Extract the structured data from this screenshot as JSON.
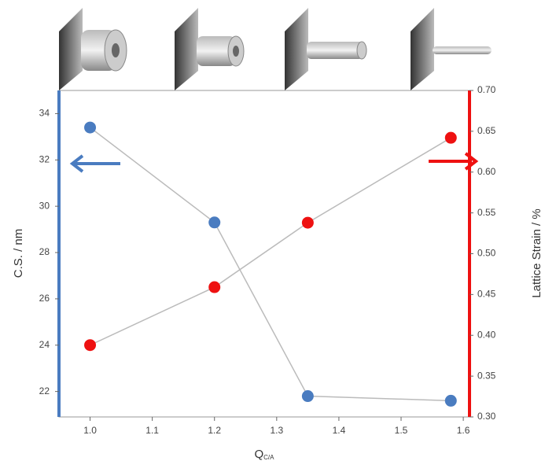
{
  "chart_data": {
    "type": "line",
    "xlabel": "Q",
    "xlabel_subscript": "C/A",
    "ylabel": "C.S. / nm",
    "y2label": "Lattice Strain / %",
    "x": [
      1.0,
      1.2,
      1.35,
      1.58
    ],
    "series": [
      {
        "name": "C.S.",
        "color": "#4a7cc0",
        "values": [
          33.4,
          29.3,
          21.8,
          21.6
        ]
      },
      {
        "name": "Lattice Strain",
        "color": "#ee1111",
        "axis": "y2",
        "values": [
          0.388,
          0.459,
          0.538,
          0.642
        ]
      }
    ],
    "xlim": [
      0.95,
      1.61
    ],
    "xticks": [
      {
        "value": 1,
        "label": "1.0"
      },
      1.1,
      1.2,
      1.3,
      1.4,
      1.5,
      1.6
    ],
    "ylim": [
      20.9,
      35
    ],
    "yticks": [
      22,
      24,
      26,
      28,
      30,
      32,
      34
    ],
    "y2lim": [
      0.3,
      0.7
    ],
    "y2ticks": [
      {
        "value": 0.3,
        "label": "0.30"
      },
      0.35,
      {
        "value": 0.4,
        "label": "0.40"
      },
      0.45,
      {
        "value": 0.5,
        "label": "0.50"
      },
      0.55,
      {
        "value": 0.6,
        "label": "0.60"
      },
      0.65,
      {
        "value": 0.7,
        "label": "0.70"
      }
    ]
  }
}
